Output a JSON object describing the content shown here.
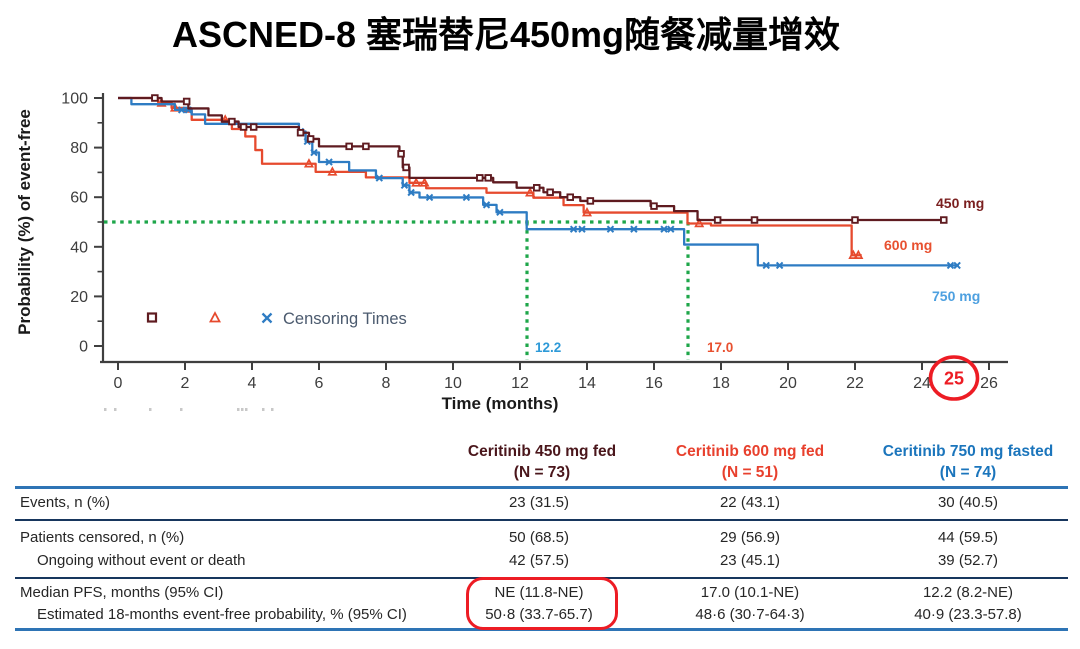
{
  "slide": {
    "title": "ASCNED-8 塞瑞替尼450mg随餐减量增效"
  },
  "chart_data": {
    "type": "line",
    "subtype": "kaplan-meier-step",
    "title": "",
    "xlabel": "Time (months)",
    "ylabel": "Probability (%) of event-free",
    "xlim": [
      0,
      26
    ],
    "ylim": [
      0,
      100
    ],
    "x_ticks": [
      0,
      2,
      4,
      6,
      8,
      10,
      12,
      14,
      16,
      18,
      20,
      22,
      24,
      26
    ],
    "y_ticks": [
      0,
      20,
      40,
      60,
      80,
      100
    ],
    "grid": false,
    "legend": {
      "label": "Censoring Times",
      "position": "bottom-left-inside"
    },
    "annotations": {
      "horizontal_dotted_line_pct": 50,
      "median_750mg_months": "12.2",
      "median_600mg_months": "17.0",
      "circled_axis_value": "25",
      "dotted_line_color": "#1ea64a",
      "median_750_label_color": "#2e9ad8",
      "median_600_label_color": "#e8502f",
      "circle_color": "#ed1c24"
    },
    "series": [
      {
        "name": "450 mg",
        "color": "#5f1b20",
        "label_color": "#7a1f1f",
        "marker": "square",
        "steps_time_pct": [
          [
            0,
            100
          ],
          [
            1.3,
            98.6
          ],
          [
            2.1,
            95.8
          ],
          [
            2.7,
            93
          ],
          [
            3.1,
            90.5
          ],
          [
            3.6,
            88.3
          ],
          [
            5.4,
            86
          ],
          [
            5.7,
            83.5
          ],
          [
            6.0,
            80.5
          ],
          [
            8.4,
            77.5
          ],
          [
            8.5,
            72
          ],
          [
            8.7,
            67.8
          ],
          [
            11.2,
            66
          ],
          [
            11.9,
            63.8
          ],
          [
            12.7,
            62
          ],
          [
            13.2,
            60
          ],
          [
            13.8,
            58.5
          ],
          [
            15.9,
            56.4
          ],
          [
            16.6,
            54.4
          ],
          [
            17.3,
            50.8
          ],
          [
            24.7,
            50.8
          ]
        ],
        "censor_times": [
          1.1,
          2.05,
          3.4,
          3.75,
          4.05,
          5.45,
          5.75,
          6.9,
          7.4,
          8.45,
          8.6,
          10.8,
          11.05,
          12.5,
          12.9,
          13.5,
          14.1,
          16.0,
          17.9,
          19.0,
          22.0,
          24.65
        ]
      },
      {
        "name": "600 mg",
        "color": "#e64a2e",
        "label_color": "#e8502f",
        "marker": "triangle",
        "steps_time_pct": [
          [
            0,
            100
          ],
          [
            1.2,
            98
          ],
          [
            1.6,
            96
          ],
          [
            2.0,
            94.5
          ],
          [
            2.2,
            91.2
          ],
          [
            3.4,
            87.5
          ],
          [
            3.8,
            84.5
          ],
          [
            4.1,
            79
          ],
          [
            4.3,
            73.5
          ],
          [
            5.9,
            70.2
          ],
          [
            7.4,
            68
          ],
          [
            8.7,
            65.8
          ],
          [
            9.2,
            63.6
          ],
          [
            11.0,
            61.8
          ],
          [
            12.4,
            59.8
          ],
          [
            13.3,
            56.8
          ],
          [
            13.9,
            53.8
          ],
          [
            17.0,
            49.4
          ],
          [
            17.7,
            48.6
          ],
          [
            21.9,
            36.6
          ],
          [
            22.2,
            36.6
          ]
        ],
        "censor_times": [
          1.3,
          1.7,
          3.2,
          5.7,
          6.4,
          8.9,
          9.15,
          12.3,
          14.0,
          17.35,
          21.95,
          22.1
        ]
      },
      {
        "name": "750 mg",
        "color": "#2e7cc3",
        "label_color": "#4da0e0",
        "marker": "x",
        "steps_time_pct": [
          [
            0,
            100
          ],
          [
            0.4,
            97.5
          ],
          [
            1.7,
            95.2
          ],
          [
            2.2,
            93.4
          ],
          [
            2.6,
            89.6
          ],
          [
            5.4,
            86.5
          ],
          [
            5.6,
            82.5
          ],
          [
            5.8,
            78
          ],
          [
            6.0,
            74.2
          ],
          [
            6.9,
            70.8
          ],
          [
            7.7,
            67.7
          ],
          [
            8.5,
            64.8
          ],
          [
            8.7,
            61.9
          ],
          [
            9.0,
            59.9
          ],
          [
            10.9,
            56.9
          ],
          [
            11.3,
            53.9
          ],
          [
            12.2,
            47.1
          ],
          [
            16.9,
            40.9
          ],
          [
            19.1,
            32.5
          ],
          [
            25.1,
            32.5
          ]
        ],
        "censor_times": [
          1.9,
          2.1,
          5.45,
          5.65,
          5.85,
          6.3,
          7.8,
          8.55,
          8.75,
          9.3,
          10.4,
          11.0,
          11.4,
          13.6,
          13.85,
          14.7,
          15.4,
          16.3,
          16.5,
          19.35,
          19.75,
          24.85,
          25.05
        ]
      }
    ]
  },
  "table": {
    "columns": [
      {
        "title": "Ceritinib 450 mg fed",
        "n": "(N = 73)",
        "color": "#4a161b"
      },
      {
        "title": "Ceritinib 600 mg fed",
        "n": "(N = 51)",
        "color": "#e8402d"
      },
      {
        "title": "Ceritinib 750 mg fasted",
        "n": "(N = 74)",
        "color": "#1b75bc"
      }
    ],
    "rows": [
      {
        "label": "Events, n (%)",
        "indent": false,
        "values": [
          "23 (31.5)",
          "22 (43.1)",
          "30 (40.5)"
        ]
      },
      {
        "label": "Patients censored, n (%)",
        "indent": false,
        "values": [
          "50 (68.5)",
          "29 (56.9)",
          "44 (59.5)"
        ]
      },
      {
        "label": "Ongoing without event or death",
        "indent": true,
        "values": [
          "42 (57.5)",
          "23 (45.1)",
          "39 (52.7)"
        ]
      },
      {
        "label": "Median PFS, months (95% CI)",
        "indent": false,
        "values": [
          "NE (11.8-NE)",
          "17.0 (10.1-NE)",
          "12.2 (8.2-NE)"
        ]
      },
      {
        "label": "Estimated 18-months event-free probability, % (95% CI)",
        "indent": true,
        "values": [
          "50·8 (33.7-65.7)",
          "48·6 (30·7-64·3)",
          "40·9 (23.3-57.8)"
        ]
      }
    ],
    "highlight_color": "#ed1c24"
  }
}
